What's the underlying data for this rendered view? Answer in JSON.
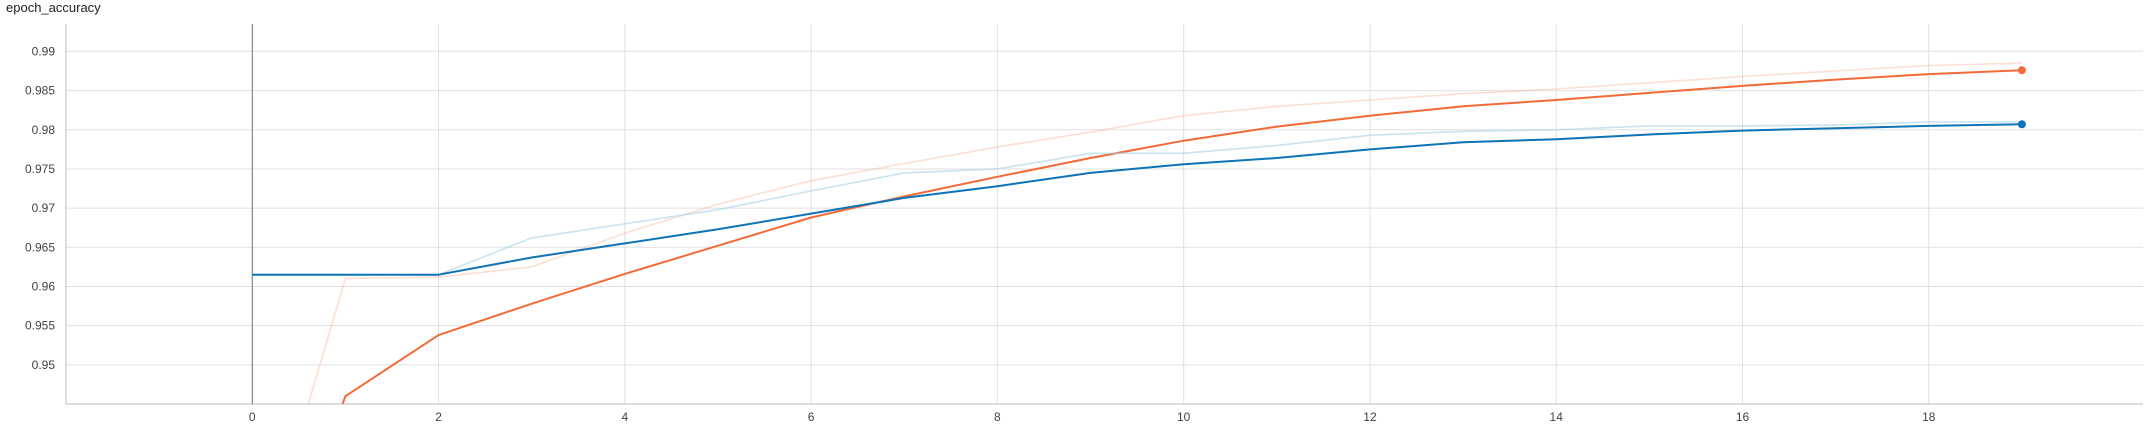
{
  "chart_data": {
    "type": "line",
    "title": "epoch_accuracy",
    "xlabel": "",
    "ylabel": "",
    "xlim": [
      -2,
      20.3
    ],
    "ylim": [
      0.945,
      0.9935
    ],
    "x_ticks": [
      0,
      2,
      4,
      6,
      8,
      10,
      12,
      14,
      16,
      18
    ],
    "y_ticks": [
      0.95,
      0.955,
      0.96,
      0.965,
      0.97,
      0.975,
      0.98,
      0.985,
      0.99
    ],
    "x_tick_labels": [
      "0",
      "2",
      "4",
      "6",
      "8",
      "10",
      "12",
      "14",
      "16",
      "18"
    ],
    "y_tick_labels": [
      "0.95",
      "0.955",
      "0.96",
      "0.965",
      "0.97",
      "0.975",
      "0.98",
      "0.985",
      "0.99"
    ],
    "grid": true,
    "legend": "none",
    "series": [
      {
        "color": "#f9a384",
        "opacity": 0.35,
        "x": [
          0.6,
          1,
          2,
          3,
          4,
          5,
          6,
          7,
          8,
          9,
          10,
          11,
          12,
          13,
          14,
          15,
          16,
          17,
          18,
          19
        ],
        "y": [
          0.945,
          0.961,
          0.9612,
          0.9625,
          0.9668,
          0.9705,
          0.9735,
          0.9757,
          0.9778,
          0.9797,
          0.9818,
          0.983,
          0.9838,
          0.9846,
          0.9852,
          0.986,
          0.9868,
          0.9875,
          0.9882,
          0.9885
        ]
      },
      {
        "color": "#f26a38",
        "opacity": 1,
        "x": [
          0.97,
          1,
          2,
          3,
          4,
          5,
          6,
          7,
          8,
          9,
          10,
          11,
          12,
          13,
          14,
          15,
          16,
          17,
          18,
          19
        ],
        "y": [
          0.945,
          0.946,
          0.9538,
          0.9578,
          0.9616,
          0.9652,
          0.9688,
          0.9715,
          0.974,
          0.9764,
          0.9786,
          0.9804,
          0.9818,
          0.983,
          0.9838,
          0.9847,
          0.9856,
          0.9864,
          0.9871,
          0.9876
        ]
      },
      {
        "color": "#a7d0ea",
        "opacity": 0.6,
        "x": [
          0,
          1,
          2,
          3,
          4,
          5,
          6,
          7,
          8,
          9,
          10,
          11,
          12,
          13,
          14,
          15,
          16,
          17,
          18,
          19
        ],
        "y": [
          0.9615,
          0.9615,
          0.9615,
          0.9662,
          0.968,
          0.9698,
          0.9722,
          0.9745,
          0.975,
          0.977,
          0.977,
          0.978,
          0.9793,
          0.9798,
          0.98,
          0.9805,
          0.9805,
          0.9806,
          0.981,
          0.981
        ]
      },
      {
        "color": "#0f73b7",
        "opacity": 1,
        "x": [
          0,
          1,
          2,
          3,
          4,
          5,
          6,
          7,
          8,
          9,
          10,
          11,
          12,
          13,
          14,
          15,
          16,
          17,
          18,
          19
        ],
        "y": [
          0.9615,
          0.9615,
          0.9615,
          0.9637,
          0.9655,
          0.9673,
          0.9693,
          0.9713,
          0.9728,
          0.9745,
          0.9756,
          0.9764,
          0.9775,
          0.9784,
          0.9788,
          0.9794,
          0.9799,
          0.9802,
          0.9805,
          0.9807
        ]
      }
    ],
    "end_markers": [
      {
        "x": 19,
        "y": 0.9876,
        "color": "#f26a38"
      },
      {
        "x": 19,
        "y": 0.9807,
        "color": "#0f73b7"
      }
    ]
  }
}
